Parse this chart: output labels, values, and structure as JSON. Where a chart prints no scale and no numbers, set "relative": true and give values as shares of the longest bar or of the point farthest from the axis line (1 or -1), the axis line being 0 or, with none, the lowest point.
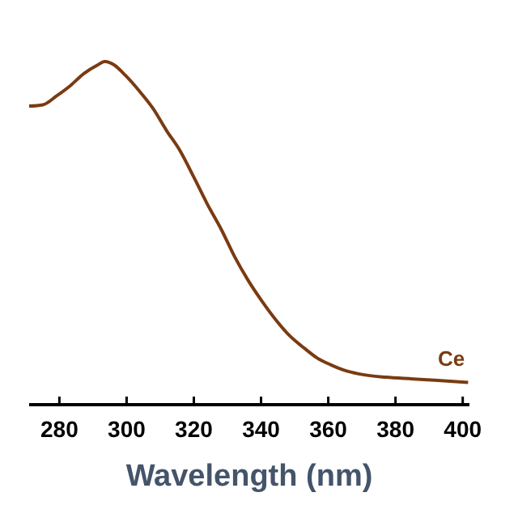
{
  "chart_data": {
    "type": "line",
    "xlabel": "Wavelength (nm)",
    "relative": true,
    "xlim": [
      271,
      402
    ],
    "xticks": [
      280,
      300,
      320,
      340,
      360,
      380,
      400
    ],
    "series": [
      {
        "name": "Ce",
        "color": "#7a3b12",
        "x": [
          271,
          275.1,
          279.2,
          283.3,
          287.3,
          291.4,
          293.5,
          296.3,
          299.6,
          303.7,
          307.8,
          311.8,
          315.9,
          320,
          324.1,
          328.2,
          332.2,
          336.3,
          340.4,
          344.5,
          348.6,
          352.7,
          356.7,
          360.8,
          364.9,
          369,
          377.1,
          385.3,
          393.5,
          401.6
        ],
        "values": [
          0.87,
          0.874,
          0.9,
          0.93,
          0.965,
          0.99,
          1.0,
          0.99,
          0.96,
          0.915,
          0.864,
          0.8,
          0.74,
          0.663,
          0.583,
          0.51,
          0.43,
          0.36,
          0.3,
          0.246,
          0.2,
          0.166,
          0.136,
          0.116,
          0.1,
          0.09,
          0.08,
          0.075,
          0.07,
          0.065
        ]
      }
    ],
    "marker": "none",
    "line_style": "solid"
  }
}
